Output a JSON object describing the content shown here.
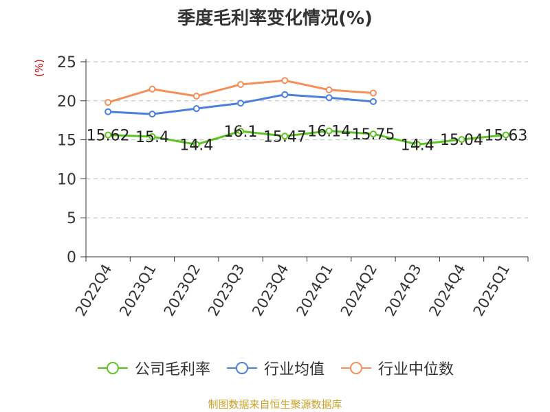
{
  "title": "季度毛利率变化情况(%)",
  "unit_label": "(%)",
  "source": "制图数据来自恒生聚源数据库",
  "chart_data": {
    "type": "line",
    "title": "季度毛利率变化情况(%)",
    "ylabel": "(%)",
    "xlabel": "",
    "ylim": [
      0,
      25
    ],
    "yticks": [
      0,
      5,
      10,
      15,
      20,
      25
    ],
    "grid": true,
    "legend_position": "bottom",
    "categories": [
      "2022Q4",
      "2023Q1",
      "2023Q2",
      "2023Q3",
      "2023Q4",
      "2024Q1",
      "2024Q2",
      "2024Q3",
      "2024Q4",
      "2025Q1"
    ],
    "series": [
      {
        "name": "公司毛利率",
        "color": "#5cc41f",
        "values": [
          15.62,
          15.4,
          14.4,
          16.1,
          15.47,
          16.14,
          15.75,
          14.4,
          15.04,
          15.63
        ],
        "labels": [
          "15.62",
          "15.4",
          "14.4",
          "16.1",
          "15.47",
          "16.14",
          "15.75",
          "14.4",
          "15.04",
          "15.63"
        ]
      },
      {
        "name": "行业均值",
        "color": "#4a7fdc",
        "values": [
          18.6,
          18.3,
          19.0,
          19.7,
          20.8,
          20.4,
          19.9,
          null,
          null,
          null
        ]
      },
      {
        "name": "行业中位数",
        "color": "#f58f59",
        "values": [
          19.8,
          21.5,
          20.6,
          22.1,
          22.6,
          21.4,
          21.0,
          null,
          null,
          null
        ]
      }
    ]
  }
}
